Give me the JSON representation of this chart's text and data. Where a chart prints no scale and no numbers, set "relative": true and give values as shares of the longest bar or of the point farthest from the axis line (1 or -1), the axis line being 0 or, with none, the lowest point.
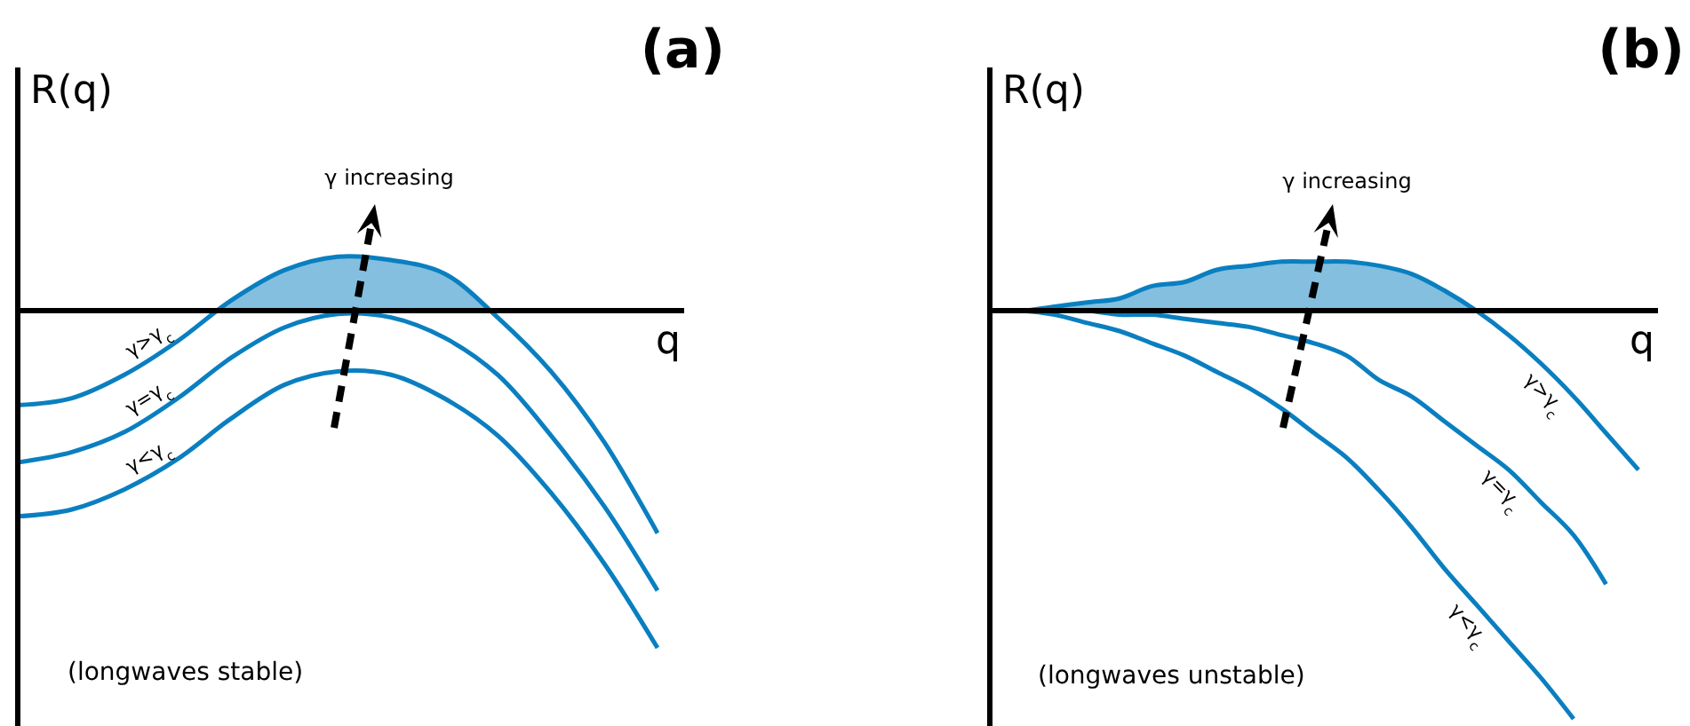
{
  "chart_data": [
    {
      "type": "line",
      "title": "(a)",
      "xlabel": "q",
      "ylabel": "R(q)",
      "relative": true,
      "categories": [
        null,
        null,
        null,
        null,
        null,
        null,
        null,
        null,
        null,
        null,
        null,
        null,
        null
      ],
      "series": [
        {
          "name": "γ>γ$_{c}$",
          "type": "area",
          "color": "#0a7fc0",
          "values": [
            -0.28,
            -0.26,
            -0.19,
            -0.09,
            0.03,
            0.12,
            0.16,
            0.15,
            0.11,
            -0.02,
            -0.18,
            -0.39,
            -0.66
          ]
        },
        {
          "name": "γ=γ$_{c}$",
          "color": "#0a7fc0",
          "values": [
            -0.45,
            -0.42,
            -0.36,
            -0.26,
            -0.14,
            -0.05,
            -0.01,
            -0.02,
            -0.08,
            -0.19,
            -0.37,
            -0.58,
            -0.83
          ]
        },
        {
          "name": "γ<γ$_{c}$",
          "color": "#0a7fc0",
          "values": [
            -0.61,
            -0.59,
            -0.53,
            -0.44,
            -0.32,
            -0.22,
            -0.18,
            -0.19,
            -0.26,
            -0.37,
            -0.54,
            -0.75,
            -1
          ]
        }
      ],
      "annotations": [
        "γ increasing",
        "(longwaves stable)"
      ]
    },
    {
      "type": "line",
      "title": "(b)",
      "xlabel": "q",
      "ylabel": "R(q)",
      "relative": true,
      "categories": [
        null,
        null,
        null,
        null,
        null,
        null,
        null,
        null,
        null,
        null,
        null,
        null,
        null,
        null,
        null,
        null,
        null,
        null,
        null,
        null,
        null
      ],
      "series": [
        {
          "name": "γ>γ$_{c}$",
          "type": "area",
          "color": "#0a7fc0",
          "values": [
            0,
            0,
            0.01,
            0.02,
            0.03,
            0.06,
            0.07,
            0.1,
            0.11,
            0.12,
            0.12,
            0.12,
            0.11,
            0.09,
            0.05,
            0,
            -0.06,
            -0.13,
            -0.21,
            -0.3,
            -0.39
          ]
        },
        {
          "name": "γ=γ$_{c}$",
          "color": "#0a7fc0",
          "values": [
            0,
            0,
            0,
            0,
            -0.01,
            -0.01,
            -0.02,
            -0.03,
            -0.04,
            -0.06,
            -0.08,
            -0.11,
            -0.17,
            -0.21,
            -0.27,
            -0.33,
            -0.39,
            -0.47,
            -0.55,
            -0.67,
            null
          ]
        },
        {
          "name": "γ<γ$_{c}$",
          "color": "#0a7fc0",
          "values": [
            0,
            0,
            -0.01,
            -0.03,
            -0.05,
            -0.08,
            -0.11,
            -0.15,
            -0.19,
            -0.24,
            -0.3,
            -0.36,
            -0.44,
            -0.53,
            -0.63,
            -0.72,
            -0.81,
            -0.9,
            -1,
            null,
            null
          ]
        }
      ],
      "annotations": [
        "γ increasing",
        "(longwaves unstable)"
      ]
    }
  ]
}
